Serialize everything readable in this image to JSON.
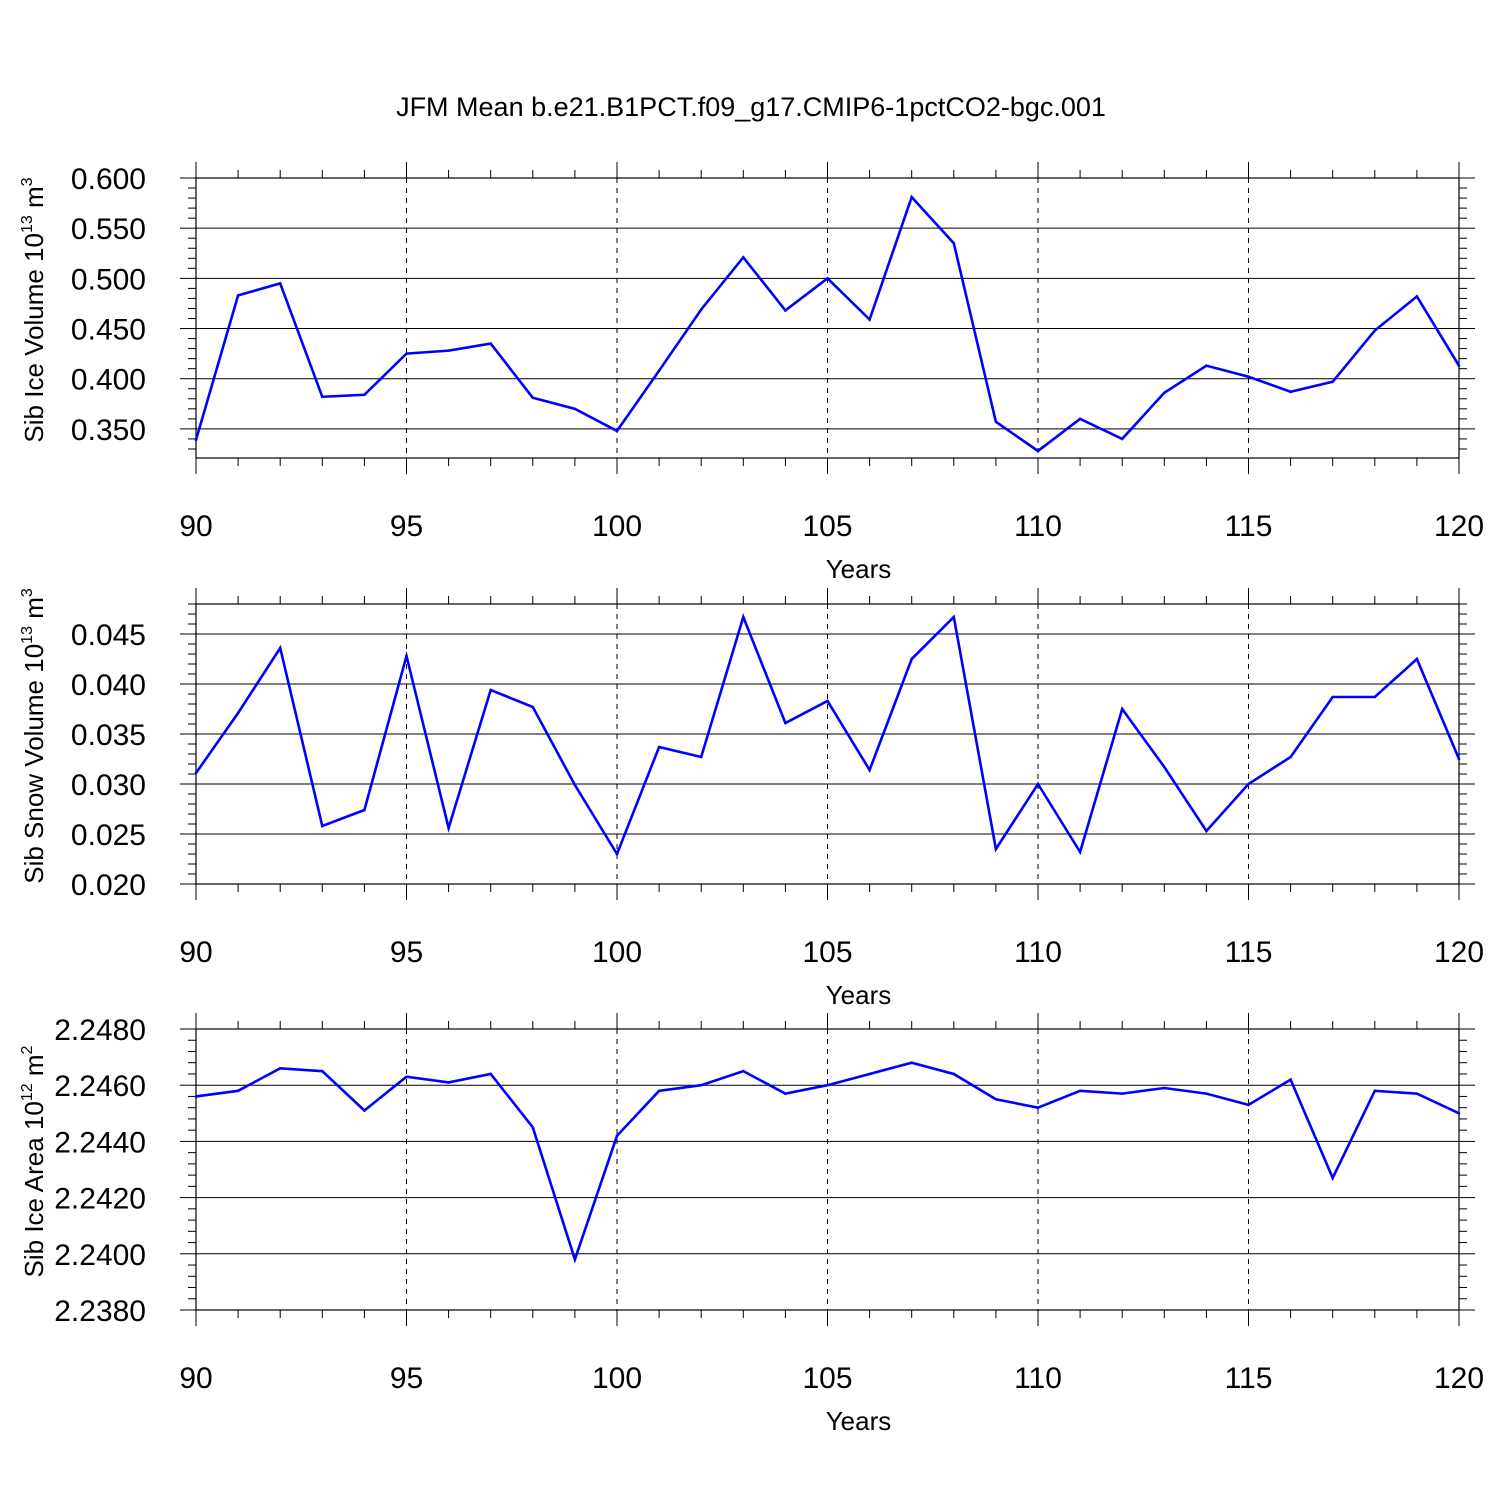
{
  "figure_title": "JFM Mean b.e21.B1PCT.f09_g17.CMIP6-1pctCO2-bgc.001",
  "chart_data": [
    {
      "type": "line",
      "title": "",
      "xlabel": "Years",
      "ylabel_prefix": "Sib Ice Volume 10",
      "ylabel_exp": "13",
      "ylabel_unit": " m",
      "ylabel_unit_exp": "3",
      "xlim": [
        90,
        120
      ],
      "ylim": [
        0.321,
        0.6
      ],
      "xticks": [
        90,
        95,
        100,
        105,
        110,
        115,
        120
      ],
      "xtick_labels": [
        "90",
        "95",
        "100",
        "105",
        "110",
        "115",
        "120"
      ],
      "yticks": [
        0.35,
        0.4,
        0.45,
        0.5,
        0.55,
        0.6
      ],
      "ytick_labels": [
        "0.350",
        "0.400",
        "0.450",
        "0.500",
        "0.550",
        "0.600"
      ],
      "grid": "vertical dashed",
      "color": "#0000ff",
      "x": [
        90,
        91,
        92,
        93,
        94,
        95,
        96,
        97,
        98,
        99,
        100,
        101,
        102,
        103,
        104,
        105,
        106,
        107,
        108,
        109,
        110,
        111,
        112,
        113,
        114,
        115,
        116,
        117,
        118,
        119,
        120
      ],
      "y": [
        0.339,
        0.483,
        0.495,
        0.382,
        0.384,
        0.425,
        0.428,
        0.435,
        0.381,
        0.37,
        0.348,
        0.408,
        0.469,
        0.521,
        0.468,
        0.5,
        0.459,
        0.581,
        0.535,
        0.357,
        0.328,
        0.36,
        0.34,
        0.386,
        0.413,
        0.402,
        0.387,
        0.397,
        0.448,
        0.482,
        0.413
      ]
    },
    {
      "type": "line",
      "title": "",
      "xlabel": "Years",
      "ylabel_prefix": "Sib Snow Volume 10",
      "ylabel_exp": "13",
      "ylabel_unit": " m",
      "ylabel_unit_exp": "3",
      "xlim": [
        90,
        120
      ],
      "ylim": [
        0.02,
        0.048
      ],
      "xticks": [
        90,
        95,
        100,
        105,
        110,
        115,
        120
      ],
      "xtick_labels": [
        "90",
        "95",
        "100",
        "105",
        "110",
        "115",
        "120"
      ],
      "yticks": [
        0.02,
        0.025,
        0.03,
        0.035,
        0.04,
        0.045
      ],
      "ytick_labels": [
        "0.020",
        "0.025",
        "0.030",
        "0.035",
        "0.040",
        "0.045"
      ],
      "grid": "vertical dashed",
      "color": "#0000ff",
      "x": [
        90,
        91,
        92,
        93,
        94,
        95,
        96,
        97,
        98,
        99,
        100,
        101,
        102,
        103,
        104,
        105,
        106,
        107,
        108,
        109,
        110,
        111,
        112,
        113,
        114,
        115,
        116,
        117,
        118,
        119,
        120
      ],
      "y": [
        0.0311,
        0.0371,
        0.0436,
        0.0258,
        0.0274,
        0.0428,
        0.0256,
        0.0394,
        0.0377,
        0.0299,
        0.023,
        0.0337,
        0.0327,
        0.0467,
        0.0361,
        0.0383,
        0.0314,
        0.0425,
        0.0467,
        0.0235,
        0.03,
        0.0232,
        0.0375,
        0.0317,
        0.0253,
        0.03,
        0.0327,
        0.0387,
        0.0387,
        0.0425,
        0.0325
      ]
    },
    {
      "type": "line",
      "title": "",
      "xlabel": "Years",
      "ylabel_prefix": "Sib Ice Area 10",
      "ylabel_exp": "12",
      "ylabel_unit": " m",
      "ylabel_unit_exp": "2",
      "xlim": [
        90,
        120
      ],
      "ylim": [
        2.238,
        2.248
      ],
      "xticks": [
        90,
        95,
        100,
        105,
        110,
        115,
        120
      ],
      "xtick_labels": [
        "90",
        "95",
        "100",
        "105",
        "110",
        "115",
        "120"
      ],
      "yticks": [
        2.238,
        2.24,
        2.242,
        2.244,
        2.246,
        2.248
      ],
      "ytick_labels": [
        "2.2380",
        "2.2400",
        "2.2420",
        "2.2440",
        "2.2460",
        "2.2480"
      ],
      "grid": "vertical dashed",
      "color": "#0000ff",
      "x": [
        90,
        91,
        92,
        93,
        94,
        95,
        96,
        97,
        98,
        99,
        100,
        101,
        102,
        103,
        104,
        105,
        106,
        107,
        108,
        109,
        110,
        111,
        112,
        113,
        114,
        115,
        116,
        117,
        118,
        119,
        120
      ],
      "y": [
        2.2456,
        2.2458,
        2.2466,
        2.2465,
        2.2451,
        2.2463,
        2.2461,
        2.2464,
        2.2445,
        2.2398,
        2.2442,
        2.2458,
        2.246,
        2.2465,
        2.2457,
        2.246,
        2.2464,
        2.2468,
        2.2464,
        2.2455,
        2.2452,
        2.2458,
        2.2457,
        2.2459,
        2.2457,
        2.2453,
        2.2462,
        2.2427,
        2.2458,
        2.2457,
        2.245
      ]
    }
  ]
}
